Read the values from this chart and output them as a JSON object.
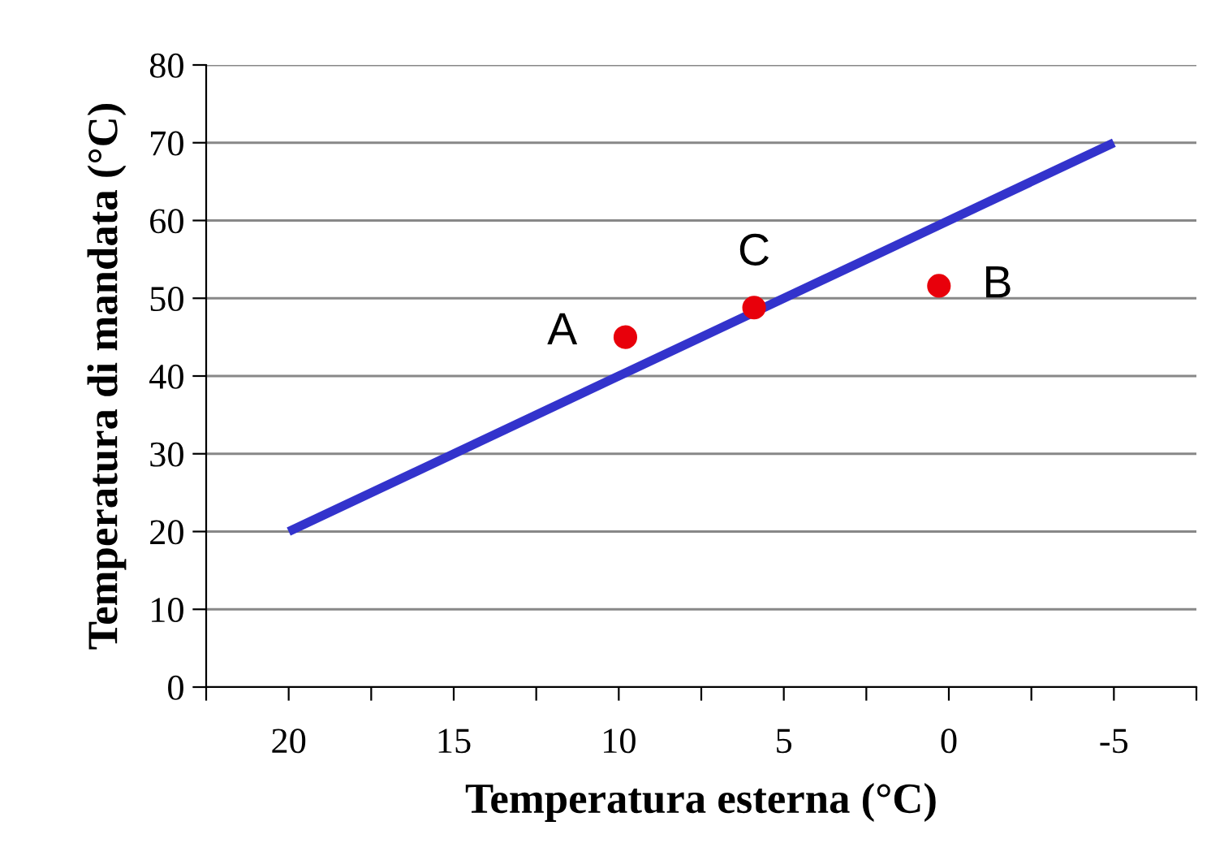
{
  "chart_data": {
    "type": "line",
    "xlabel": "Temperatura esterna (°C)",
    "ylabel": "Temperatura di mandata (°C)",
    "series": [
      {
        "color": "#3333cc",
        "x": [
          20,
          -5
        ],
        "values": [
          20,
          70
        ],
        "marker": "none"
      },
      {
        "type": "scatter",
        "color": "#e8000b",
        "x": [
          9.8,
          5.9,
          0.3
        ],
        "values": [
          45,
          48.8,
          51.6
        ],
        "marker": "circle"
      }
    ],
    "annotations": [
      {
        "text": "A",
        "x": 9.8,
        "y": 45
      },
      {
        "text": "B",
        "x": 0.3,
        "y": 51.6
      },
      {
        "text": "C",
        "x": 5.9,
        "y": 48.8
      }
    ],
    "xlim": [
      22.5,
      -7.5
    ],
    "xticks": [
      {
        "value": 22.5,
        "label": null
      },
      20,
      {
        "value": 17.5,
        "label": null
      },
      15,
      {
        "value": 12.5,
        "label": null
      },
      10,
      {
        "value": 7.5,
        "label": null
      },
      5,
      {
        "value": 2.5,
        "label": null
      },
      0,
      {
        "value": -2.5,
        "label": null
      },
      -5,
      {
        "value": -7.5,
        "label": null
      }
    ],
    "ylim": [
      0,
      80
    ],
    "yticks": [
      0,
      10,
      20,
      30,
      40,
      50,
      60,
      70,
      80
    ],
    "grid": "y",
    "legend": false
  }
}
